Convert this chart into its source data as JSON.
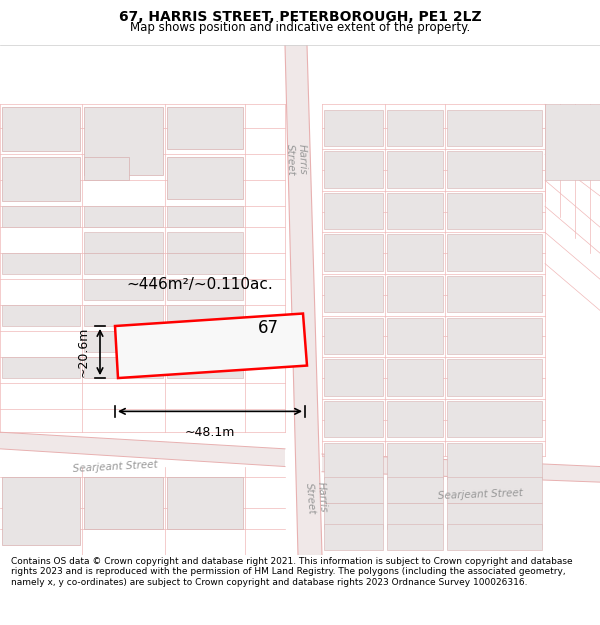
{
  "title_line1": "67, HARRIS STREET, PETERBOROUGH, PE1 2LZ",
  "title_line2": "Map shows position and indicative extent of the property.",
  "footer_text": "Contains OS data © Crown copyright and database right 2021. This information is subject to Crown copyright and database rights 2023 and is reproduced with the permission of HM Land Registry. The polygons (including the associated geometry, namely x, y co-ordinates) are subject to Crown copyright and database rights 2023 Ordnance Survey 100026316.",
  "map_bg": "#ffffff",
  "road_fill": "#f0e8e8",
  "road_line": "#e8b0b0",
  "cad_line": "#f0b8b8",
  "bld_fill": "#e8e4e4",
  "bld_outline": "#d8b0b0",
  "highlight_outline": "#ff0000",
  "highlight_lw": 1.8,
  "dim_color": "#111111",
  "area_text": "~446m²/~0.110ac.",
  "number_text": "67",
  "width_label": "~48.1m",
  "height_label": "~20.6m",
  "title_fontsize": 10,
  "subtitle_fontsize": 8.5,
  "footer_fontsize": 6.5,
  "street_label_fontsize": 7.5
}
